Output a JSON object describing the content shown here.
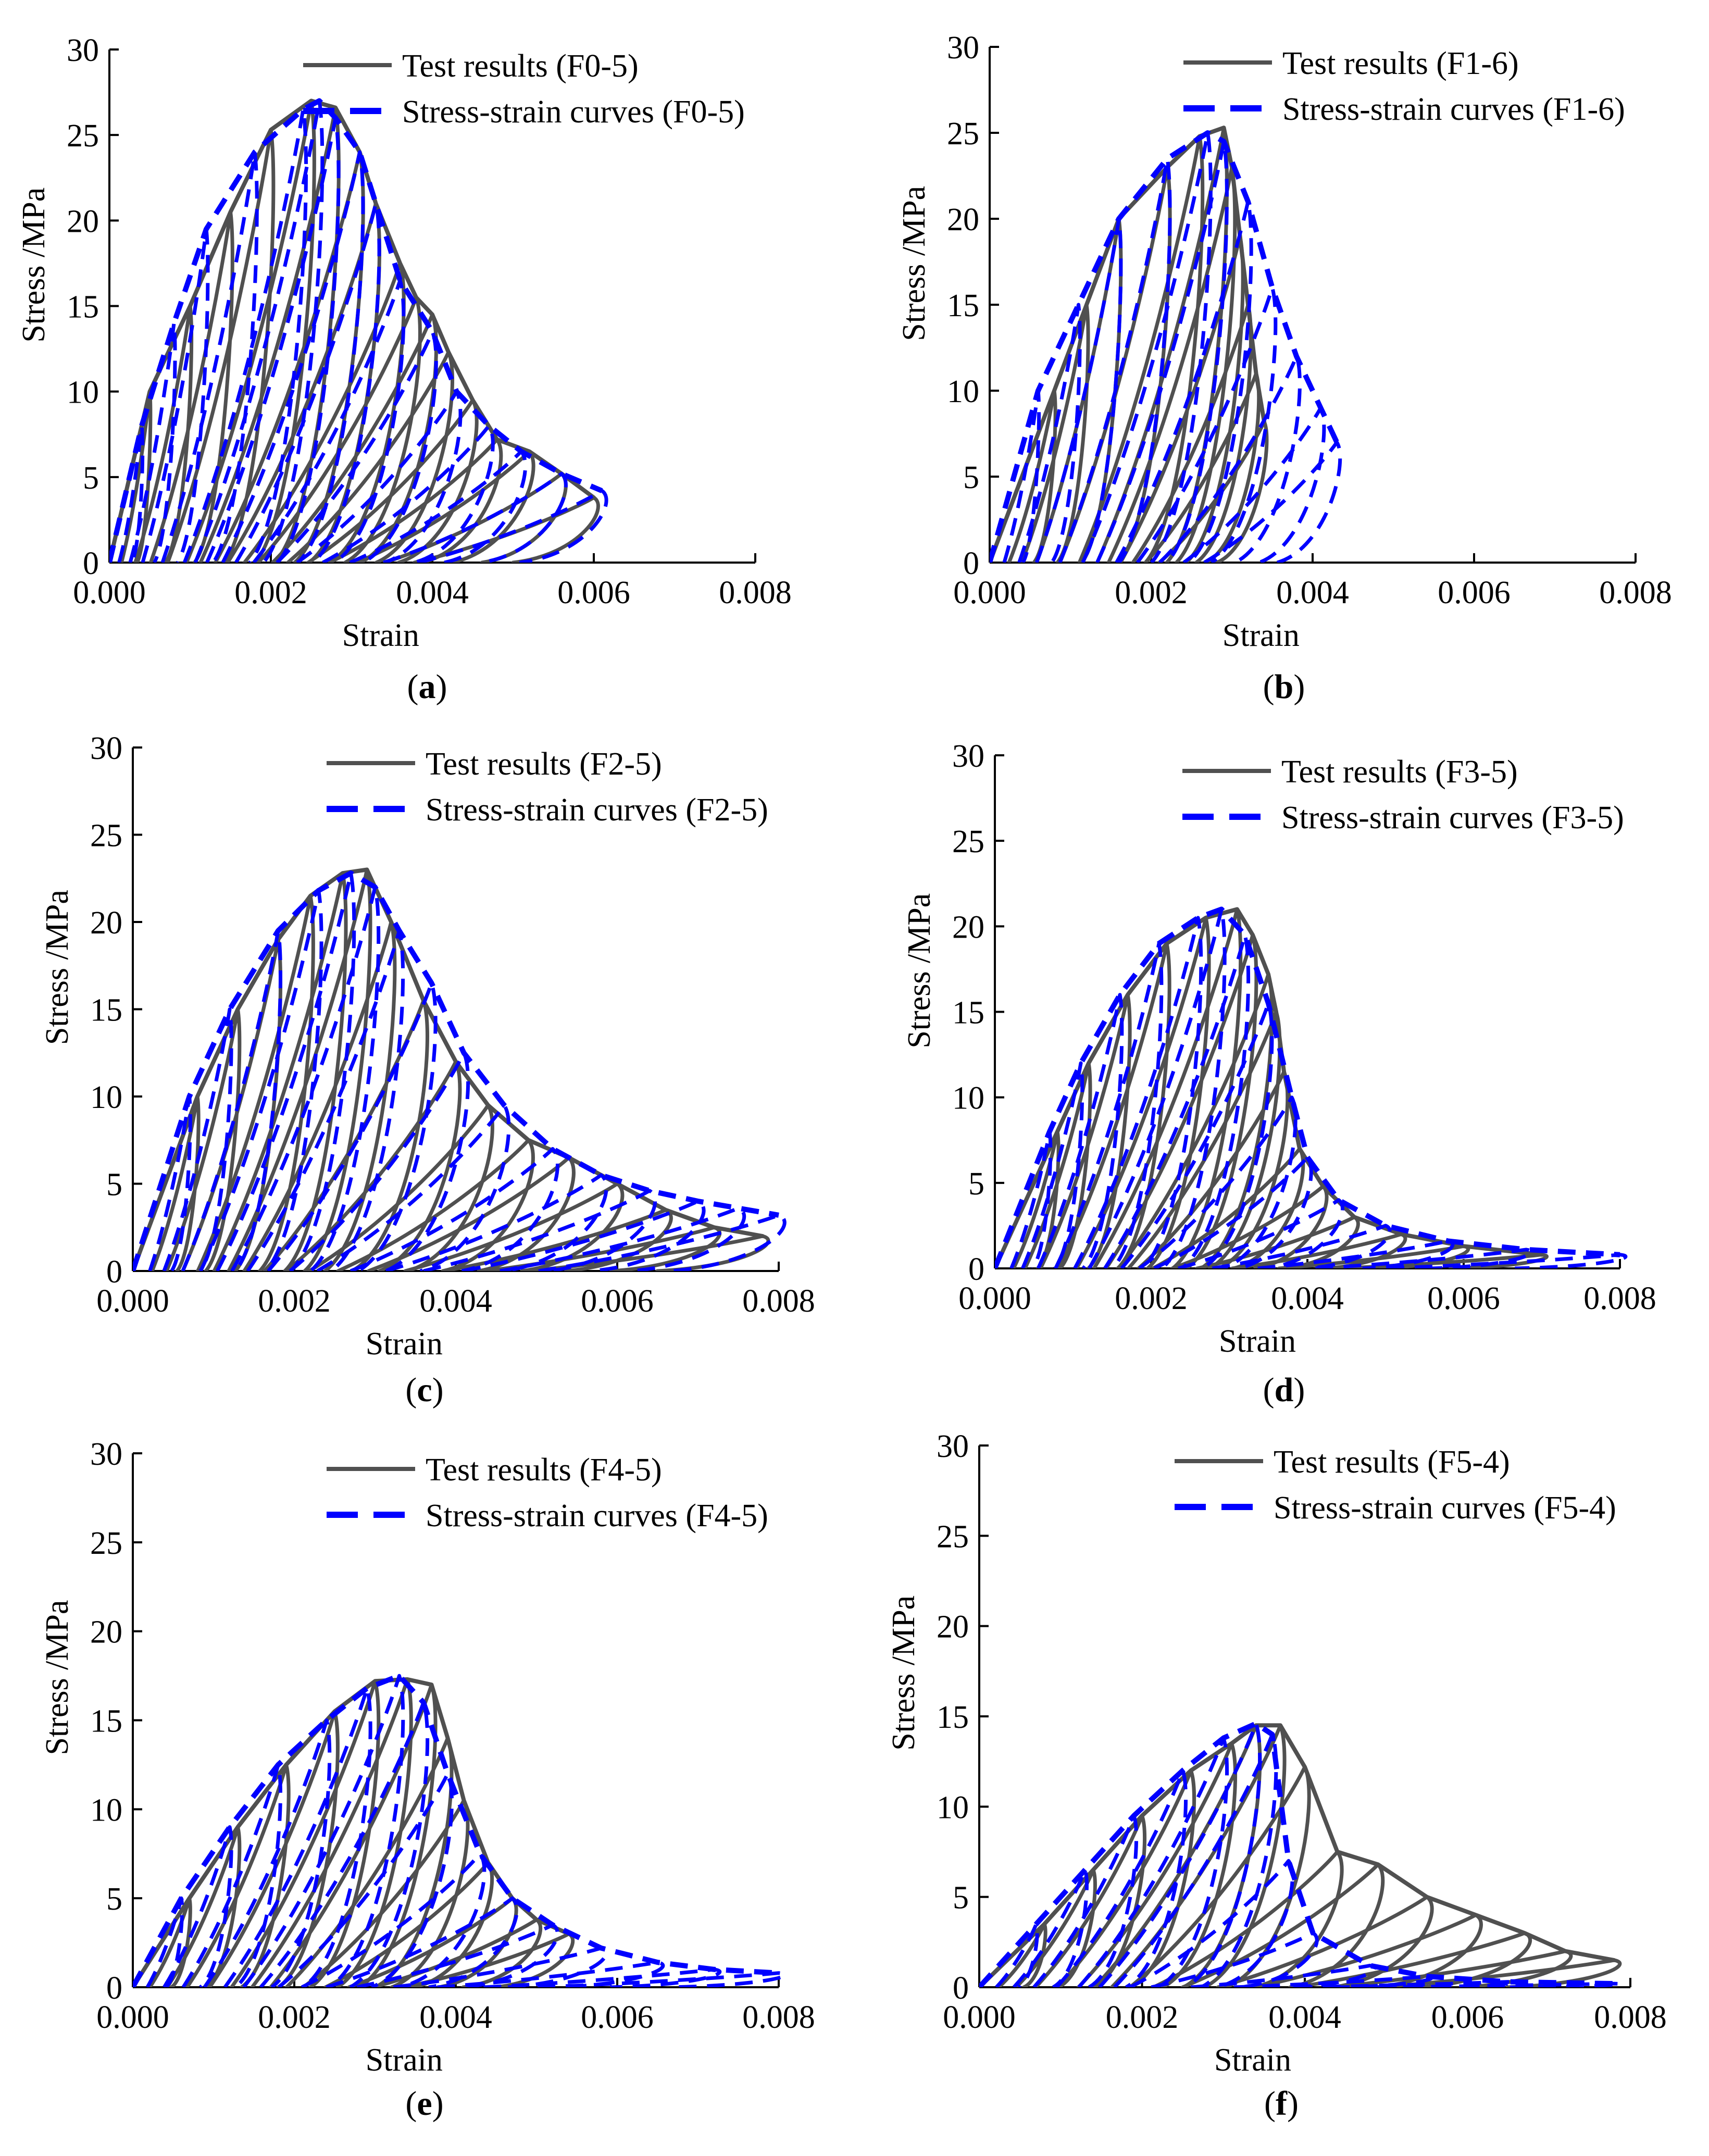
{
  "colors": {
    "test": "#505050",
    "model": "#0000ff",
    "axis": "#000000"
  },
  "chart_data": [
    {
      "id": "a",
      "type": "line",
      "panel_label": "a",
      "xlabel": "Strain",
      "ylabel": "Stress /MPa",
      "xlim": [
        0,
        0.008
      ],
      "ylim": [
        0,
        30
      ],
      "xticks": [
        "0.000",
        "0.002",
        "0.004",
        "0.006",
        "0.008"
      ],
      "yticks": [
        "0",
        "5",
        "10",
        "15",
        "20",
        "25",
        "30"
      ],
      "legend": "top-right",
      "series": [
        {
          "name": "Test results (F0-5)",
          "style": "solid",
          "color": "#505050",
          "envelope": [
            [
              0.0005,
              10
            ],
            [
              0.001,
              15
            ],
            [
              0.0015,
              20.5
            ],
            [
              0.002,
              25.3
            ],
            [
              0.0025,
              27
            ],
            [
              0.0028,
              26.6
            ],
            [
              0.0031,
              24
            ],
            [
              0.0033,
              21
            ],
            [
              0.0036,
              17.5
            ],
            [
              0.0038,
              15.5
            ],
            [
              0.004,
              14.5
            ],
            [
              0.0042,
              12.3
            ],
            [
              0.0045,
              9.5
            ],
            [
              0.0048,
              7.2
            ],
            [
              0.0052,
              6.5
            ],
            [
              0.0056,
              5.2
            ],
            [
              0.006,
              3.8
            ]
          ]
        },
        {
          "name": "Stress-strain curves (F0-5)",
          "style": "dashed",
          "color": "#0000ff",
          "envelope": [
            [
              0.0004,
              8
            ],
            [
              0.0008,
              14
            ],
            [
              0.0012,
              19.5
            ],
            [
              0.0018,
              24
            ],
            [
              0.0024,
              26.5
            ],
            [
              0.0026,
              27
            ],
            [
              0.0028,
              26
            ],
            [
              0.0031,
              24
            ],
            [
              0.0033,
              21
            ],
            [
              0.0036,
              16.5
            ],
            [
              0.004,
              13.5
            ],
            [
              0.0043,
              10
            ],
            [
              0.0047,
              8
            ],
            [
              0.0051,
              6.5
            ],
            [
              0.0056,
              5.2
            ],
            [
              0.0061,
              4.2
            ]
          ]
        }
      ]
    },
    {
      "id": "b",
      "type": "line",
      "panel_label": "b",
      "xlabel": "Strain",
      "ylabel": "Stress /MPa",
      "xlim": [
        0,
        0.008
      ],
      "ylim": [
        0,
        30
      ],
      "xticks": [
        "0.000",
        "0.002",
        "0.004",
        "0.006",
        "0.008"
      ],
      "yticks": [
        "0",
        "5",
        "10",
        "15",
        "20",
        "25",
        "30"
      ],
      "legend": "top-right",
      "series": [
        {
          "name": "Test results (F1-6)",
          "style": "solid",
          "color": "#505050",
          "envelope": [
            [
              0.0008,
              10
            ],
            [
              0.0012,
              15
            ],
            [
              0.0016,
              20
            ],
            [
              0.0022,
              23
            ],
            [
              0.0026,
              24.8
            ],
            [
              0.0029,
              25.3
            ],
            [
              0.003,
              23
            ],
            [
              0.0031,
              19
            ],
            [
              0.0032,
              15
            ],
            [
              0.0033,
              11
            ],
            [
              0.0034,
              8.2
            ]
          ]
        },
        {
          "name": "Stress-strain curves (F1-6)",
          "style": "dashed",
          "color": "#0000ff",
          "envelope": [
            [
              0.0006,
              10
            ],
            [
              0.0011,
              15
            ],
            [
              0.0016,
              20
            ],
            [
              0.0022,
              23.5
            ],
            [
              0.0027,
              25
            ],
            [
              0.0029,
              24.5
            ],
            [
              0.0032,
              21
            ],
            [
              0.0035,
              16
            ],
            [
              0.0038,
              12
            ],
            [
              0.0041,
              9
            ],
            [
              0.0043,
              7
            ]
          ]
        }
      ]
    },
    {
      "id": "c",
      "type": "line",
      "panel_label": "c",
      "xlabel": "Strain",
      "ylabel": "Stress /MPa",
      "xlim": [
        0,
        0.008
      ],
      "ylim": [
        0,
        30
      ],
      "xticks": [
        "0.000",
        "0.002",
        "0.004",
        "0.006",
        "0.008"
      ],
      "yticks": [
        "0",
        "5",
        "10",
        "15",
        "20",
        "25",
        "30"
      ],
      "legend": "top-right",
      "series": [
        {
          "name": "Test results (F2-5)",
          "style": "solid",
          "color": "#505050",
          "envelope": [
            [
              0.0008,
              10
            ],
            [
              0.0013,
              15
            ],
            [
              0.0018,
              19
            ],
            [
              0.0022,
              21.5
            ],
            [
              0.0026,
              22.8
            ],
            [
              0.0029,
              23
            ],
            [
              0.0032,
              20
            ],
            [
              0.0036,
              15.5
            ],
            [
              0.004,
              12
            ],
            [
              0.0044,
              9.5
            ],
            [
              0.0049,
              7.5
            ],
            [
              0.0054,
              6.5
            ],
            [
              0.006,
              5
            ],
            [
              0.0066,
              3.5
            ],
            [
              0.0072,
              2.5
            ],
            [
              0.0078,
              2
            ]
          ]
        },
        {
          "name": "Stress-strain curves  (F2-5)",
          "style": "dashed",
          "color": "#0000ff",
          "envelope": [
            [
              0.0007,
              10
            ],
            [
              0.0012,
              15
            ],
            [
              0.0018,
              19.5
            ],
            [
              0.0023,
              21.8
            ],
            [
              0.0027,
              22.8
            ],
            [
              0.003,
              22
            ],
            [
              0.0033,
              19.5
            ],
            [
              0.0037,
              16.5
            ],
            [
              0.0041,
              12.5
            ],
            [
              0.0046,
              9.5
            ],
            [
              0.0052,
              7
            ],
            [
              0.0058,
              5.5
            ],
            [
              0.0064,
              4.6
            ],
            [
              0.007,
              4
            ],
            [
              0.0075,
              3.6
            ],
            [
              0.008,
              3.2
            ]
          ]
        }
      ]
    },
    {
      "id": "d",
      "type": "line",
      "panel_label": "d",
      "xlabel": "Strain",
      "ylabel": "Stress /MPa",
      "xlim": [
        0,
        0.008
      ],
      "ylim": [
        0,
        30
      ],
      "xticks": [
        "0.000",
        "0.002",
        "0.004",
        "0.006",
        "0.008"
      ],
      "yticks": [
        "0",
        "5",
        "10",
        "15",
        "20",
        "25",
        "30"
      ],
      "legend": "top-right",
      "series": [
        {
          "name": "Test results (F3-5)",
          "style": "solid",
          "color": "#505050",
          "envelope": [
            [
              0.0008,
              8
            ],
            [
              0.0012,
              12
            ],
            [
              0.0017,
              16
            ],
            [
              0.0022,
              19
            ],
            [
              0.0027,
              20.5
            ],
            [
              0.0031,
              21
            ],
            [
              0.0033,
              19.5
            ],
            [
              0.0035,
              17.2
            ],
            [
              0.0036,
              15
            ],
            [
              0.0037,
              11.5
            ],
            [
              0.0039,
              7
            ],
            [
              0.0042,
              4.8
            ],
            [
              0.0046,
              3
            ],
            [
              0.0052,
              2
            ],
            [
              0.006,
              1.3
            ],
            [
              0.007,
              0.8
            ]
          ]
        },
        {
          "name": "Stress-strain curves (F3-5)",
          "style": "dashed",
          "color": "#0000ff",
          "envelope": [
            [
              0.0007,
              8
            ],
            [
              0.0011,
              12
            ],
            [
              0.0016,
              16
            ],
            [
              0.0021,
              19
            ],
            [
              0.0026,
              20.5
            ],
            [
              0.0029,
              21
            ],
            [
              0.0032,
              19.5
            ],
            [
              0.0035,
              15.5
            ],
            [
              0.0038,
              10
            ],
            [
              0.004,
              6.5
            ],
            [
              0.0044,
              4
            ],
            [
              0.005,
              2.5
            ],
            [
              0.0058,
              1.6
            ],
            [
              0.0068,
              1.1
            ],
            [
              0.008,
              0.8
            ]
          ]
        }
      ]
    },
    {
      "id": "e",
      "type": "line",
      "panel_label": "e",
      "xlabel": "Strain",
      "ylabel": "Stress /MPa",
      "xlim": [
        0,
        0.008
      ],
      "ylim": [
        0,
        30
      ],
      "xticks": [
        "0.000",
        "0.002",
        "0.004",
        "0.006",
        "0.008"
      ],
      "yticks": [
        "0",
        "5",
        "10",
        "15",
        "20",
        "25",
        "30"
      ],
      "legend": "top-right",
      "series": [
        {
          "name": "Test results (F4-5)",
          "style": "solid",
          "color": "#505050",
          "envelope": [
            [
              0.0007,
              5
            ],
            [
              0.0013,
              9
            ],
            [
              0.0019,
              12.5
            ],
            [
              0.0025,
              15.5
            ],
            [
              0.003,
              17.2
            ],
            [
              0.0034,
              17.3
            ],
            [
              0.0037,
              17
            ],
            [
              0.0039,
              14
            ],
            [
              0.0041,
              10.5
            ],
            [
              0.0044,
              7
            ],
            [
              0.0047,
              5
            ],
            [
              0.005,
              3.8
            ],
            [
              0.0054,
              3
            ]
          ]
        },
        {
          "name": "Stress-strain curves (F4-5)",
          "style": "dashed",
          "color": "#0000ff",
          "envelope": [
            [
              0.0006,
              5
            ],
            [
              0.0012,
              9
            ],
            [
              0.0018,
              12.5
            ],
            [
              0.0024,
              15
            ],
            [
              0.0029,
              16.8
            ],
            [
              0.0033,
              17.5
            ],
            [
              0.0036,
              16
            ],
            [
              0.0039,
              12
            ],
            [
              0.0043,
              7.5
            ],
            [
              0.0047,
              5
            ],
            [
              0.0052,
              3.5
            ],
            [
              0.0058,
              2.2
            ],
            [
              0.0065,
              1.4
            ],
            [
              0.0072,
              1
            ],
            [
              0.008,
              0.8
            ]
          ]
        }
      ]
    },
    {
      "id": "f",
      "type": "line",
      "panel_label": "f",
      "xlabel": "Strain",
      "ylabel": "Stress /MPa",
      "xlim": [
        0,
        0.008
      ],
      "ylim": [
        0,
        30
      ],
      "xticks": [
        "0.000",
        "0.002",
        "0.004",
        "0.006",
        "0.008"
      ],
      "yticks": [
        "0",
        "5",
        "10",
        "15",
        "20",
        "25",
        "30"
      ],
      "legend": "top-right",
      "series": [
        {
          "name": "Test results (F5-4)",
          "style": "solid",
          "color": "#505050",
          "envelope": [
            [
              0.0008,
              3.5
            ],
            [
              0.0014,
              6.5
            ],
            [
              0.002,
              9.5
            ],
            [
              0.0026,
              12
            ],
            [
              0.0031,
              13.5
            ],
            [
              0.0034,
              14.5
            ],
            [
              0.0037,
              14.5
            ],
            [
              0.004,
              12.2
            ],
            [
              0.0044,
              7.5
            ],
            [
              0.0049,
              6.8
            ],
            [
              0.0055,
              5
            ],
            [
              0.0061,
              4
            ],
            [
              0.0067,
              3
            ],
            [
              0.0072,
              2
            ],
            [
              0.0078,
              1.5
            ]
          ]
        },
        {
          "name": "Stress-strain curves (F5-4)",
          "style": "dashed",
          "color": "#0000ff",
          "envelope": [
            [
              0.0007,
              3.5
            ],
            [
              0.0013,
              6.5
            ],
            [
              0.0019,
              9.5
            ],
            [
              0.0025,
              12
            ],
            [
              0.003,
              13.8
            ],
            [
              0.0034,
              14.6
            ],
            [
              0.0036,
              14
            ],
            [
              0.0038,
              7
            ],
            [
              0.0041,
              3
            ],
            [
              0.0048,
              1.2
            ],
            [
              0.0055,
              0.6
            ],
            [
              0.0065,
              0.3
            ],
            [
              0.0078,
              0.2
            ]
          ]
        }
      ]
    }
  ]
}
